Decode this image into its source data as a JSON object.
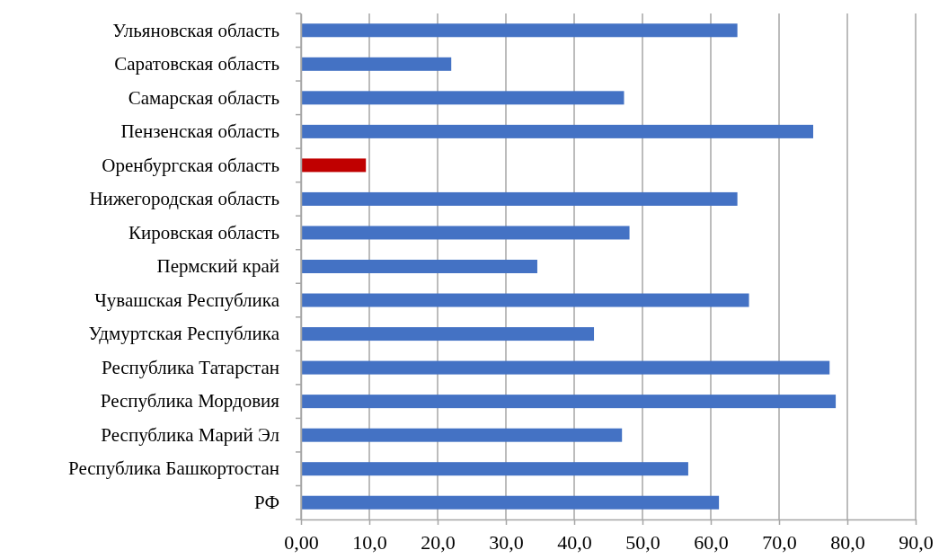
{
  "chart_data": {
    "type": "bar",
    "orientation": "horizontal",
    "categories": [
      "Ульяновская область",
      "Саратовская область",
      "Самарская область",
      "Пензенская область",
      "Оренбургская область",
      "Нижегородская область",
      "Кировская область",
      "Пермский край",
      "Чувашская Республика",
      "Удмуртская Республика",
      "Республика Татарстан",
      "Республика Мордовия",
      "Республика Марий Эл",
      "Республика Башкортостан",
      "РФ"
    ],
    "values": [
      63.9,
      22.0,
      47.3,
      75.0,
      9.5,
      63.9,
      48.1,
      34.6,
      65.6,
      42.9,
      77.4,
      78.3,
      47.0,
      56.7,
      61.2
    ],
    "colors": [
      "#4472c4",
      "#4472c4",
      "#4472c4",
      "#4472c4",
      "#c00000",
      "#4472c4",
      "#4472c4",
      "#4472c4",
      "#4472c4",
      "#4472c4",
      "#4472c4",
      "#4472c4",
      "#4472c4",
      "#4472c4",
      "#4472c4"
    ],
    "xlim": [
      0,
      90
    ],
    "xticks": [
      {
        "value": 0,
        "label": "0,00"
      },
      {
        "value": 10,
        "label": "10,0"
      },
      {
        "value": 20,
        "label": "20,0"
      },
      {
        "value": 30,
        "label": "30,0"
      },
      {
        "value": 40,
        "label": "40,0"
      },
      {
        "value": 50,
        "label": "50,0"
      },
      {
        "value": 60,
        "label": "60,0"
      },
      {
        "value": 70,
        "label": "70,0"
      },
      {
        "value": 80,
        "label": "80,0"
      },
      {
        "value": 90,
        "label": "90,0"
      }
    ],
    "grid": "x"
  }
}
